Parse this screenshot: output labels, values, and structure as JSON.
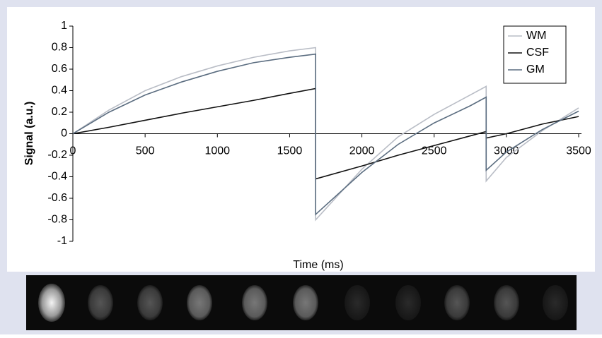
{
  "chart_data": {
    "type": "line",
    "x_label": "Time (ms)",
    "y_label": "Signal (a.u.)",
    "x": [
      0,
      250,
      500,
      750,
      1000,
      1250,
      1500,
      1680,
      1680,
      2000,
      2250,
      2500,
      2750,
      2860,
      2860,
      3000,
      3250,
      3500
    ],
    "series": [
      {
        "name": "WM",
        "color": "#b9bdc6",
        "values": [
          0,
          0.22,
          0.4,
          0.53,
          0.63,
          0.71,
          0.77,
          0.8,
          -0.8,
          -0.33,
          -0.03,
          0.18,
          0.36,
          0.44,
          -0.44,
          -0.22,
          0.03,
          0.24
        ]
      },
      {
        "name": "CSF",
        "color": "#111111",
        "values": [
          0,
          0.06,
          0.125,
          0.19,
          0.25,
          0.31,
          0.375,
          0.42,
          -0.42,
          -0.3,
          -0.2,
          -0.11,
          -0.02,
          0.02,
          -0.04,
          0,
          0.09,
          0.16
        ]
      },
      {
        "name": "GM",
        "color": "#5b6d80",
        "values": [
          0,
          0.2,
          0.36,
          0.48,
          0.58,
          0.66,
          0.71,
          0.74,
          -0.75,
          -0.36,
          -0.1,
          0.1,
          0.26,
          0.34,
          -0.34,
          -0.17,
          0.04,
          0.21
        ]
      }
    ],
    "xlim": [
      0,
      3500
    ],
    "xticks": [
      0,
      500,
      1000,
      1500,
      2000,
      2500,
      3000,
      3500
    ],
    "ylim": [
      -1,
      1
    ],
    "yticks": [
      -1,
      -0.8,
      -0.6,
      -0.4,
      -0.2,
      0,
      0.2,
      0.4,
      0.6,
      0.8,
      1
    ],
    "legend": "upper right"
  }
}
